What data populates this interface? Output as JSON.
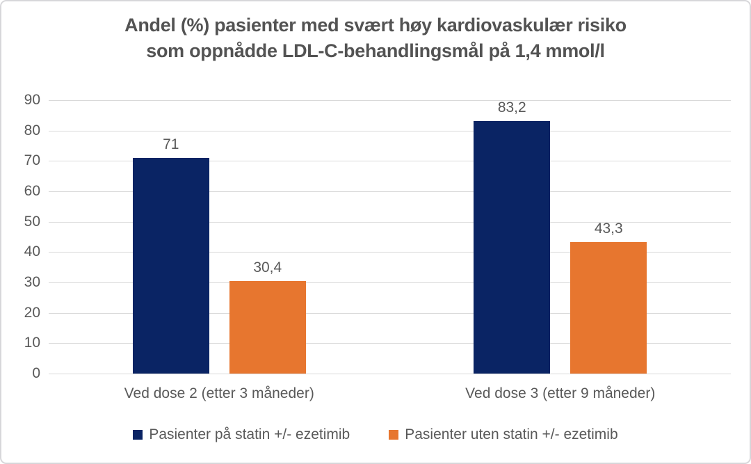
{
  "chart_data": {
    "type": "bar",
    "title": "Andel (%) pasienter med svært høy kardiovaskulær risiko som oppnådde LDL-C-behandlingsmål på 1,4 mmol/l",
    "title_lines": [
      "Andel (%) pasienter med svært høy kardiovaskulær risiko",
      "som oppnådde LDL-C-behandlingsmål på 1,4 mmol/l"
    ],
    "categories": [
      "Ved dose 2 (etter 3 måneder)",
      "Ved dose 3 (etter 9 måneder)"
    ],
    "series": [
      {
        "name": "Pasienter på statin +/- ezetimib",
        "values": [
          71,
          83.2
        ],
        "labels": [
          "71",
          "83,2"
        ],
        "color": "#0a2464"
      },
      {
        "name": "Pasienter uten statin +/- ezetimib",
        "values": [
          30.4,
          43.3
        ],
        "labels": [
          "30,4",
          "43,3"
        ],
        "color": "#e7762f"
      }
    ],
    "xlabel": "",
    "ylabel": "",
    "ylim": [
      0,
      90
    ],
    "yticks": [
      0,
      10,
      20,
      30,
      40,
      50,
      60,
      70,
      80,
      90
    ],
    "grid": true,
    "legend_position": "bottom",
    "gridline_color": "#d9d9d9",
    "text_color": "#595959",
    "background_color": "#ffffff",
    "border_color": "#d7d7da"
  }
}
